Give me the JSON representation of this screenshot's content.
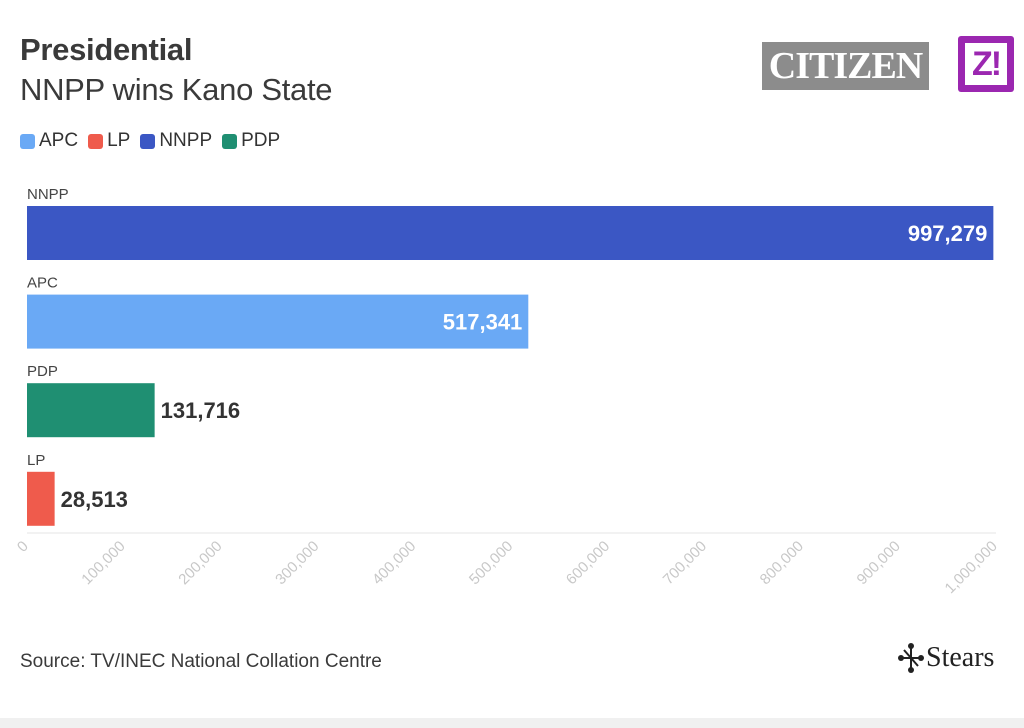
{
  "header": {
    "title": "Presidential",
    "subtitle": "NNPP wins Kano State"
  },
  "logos": {
    "citizen": "CITIZEN",
    "zikoko": "Z!"
  },
  "legend": [
    {
      "label": "APC",
      "color": "#6aa9f5"
    },
    {
      "label": "LP",
      "color": "#ef5b4c"
    },
    {
      "label": "NNPP",
      "color": "#3b57c4"
    },
    {
      "label": "PDP",
      "color": "#1f8f72"
    }
  ],
  "chart_data": {
    "type": "bar",
    "orientation": "horizontal",
    "categories": [
      "NNPP",
      "APC",
      "PDP",
      "LP"
    ],
    "values": [
      997279,
      517341,
      131716,
      28513
    ],
    "value_labels": [
      "997,279",
      "517,341",
      "131,716",
      "28,513"
    ],
    "colors": [
      "#3b57c4",
      "#6aa9f5",
      "#1f8f72",
      "#ef5b4c"
    ],
    "xlim": [
      0,
      1000000
    ],
    "x_ticks": [
      0,
      100000,
      200000,
      300000,
      400000,
      500000,
      600000,
      700000,
      800000,
      900000,
      1000000
    ],
    "x_tick_labels": [
      "0",
      "100,000",
      "200,000",
      "300,000",
      "400,000",
      "500,000",
      "600,000",
      "700,000",
      "800,000",
      "900,000",
      "1,000,000"
    ],
    "title": "Presidential",
    "subtitle": "NNPP wins Kano State",
    "xlabel": "",
    "ylabel": "",
    "grid": false,
    "legend_position": "top-left"
  },
  "footer": {
    "source": "Source: TV/INEC National Collation Centre",
    "brand": "Stears"
  }
}
